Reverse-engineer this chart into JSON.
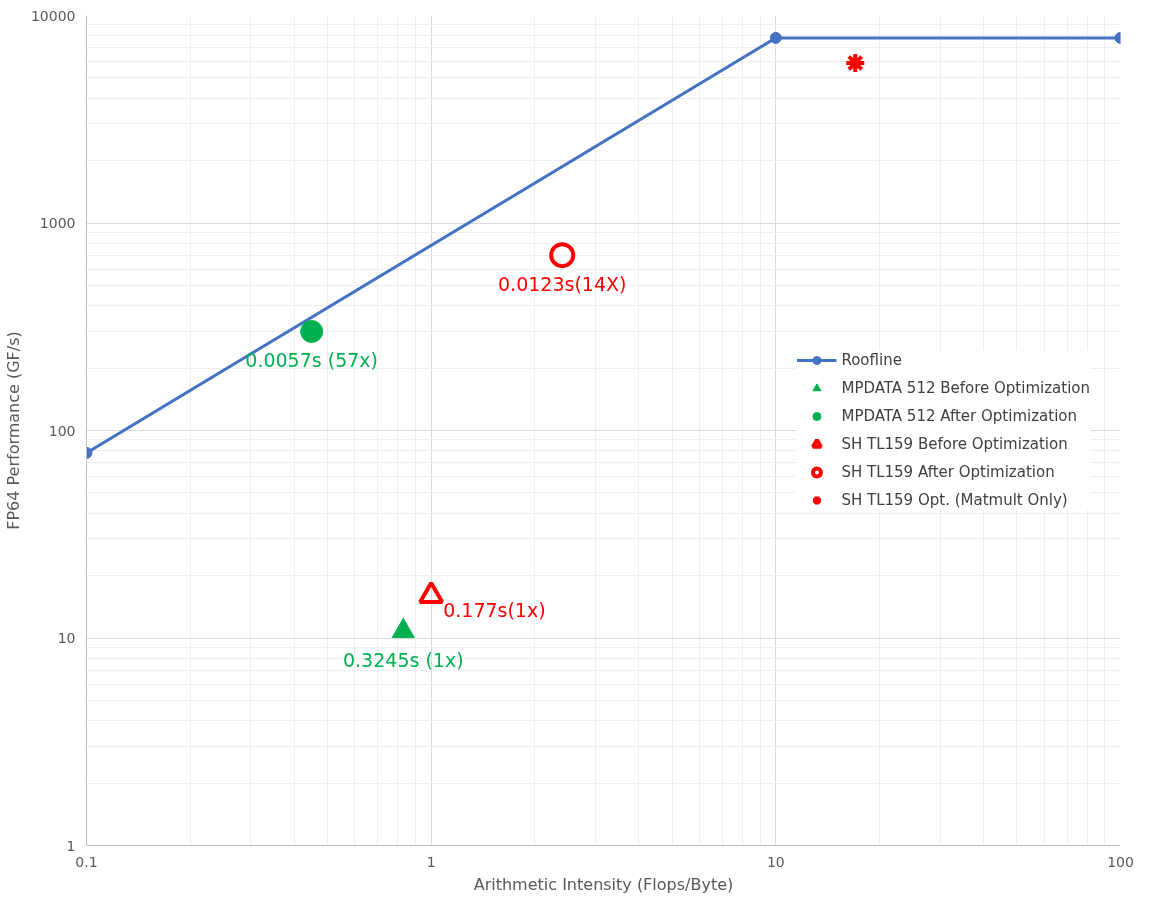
{
  "chart_data": {
    "type": "line",
    "xlabel": "Arithmetic Intensity (Flops/Byte)",
    "ylabel": "FP64 Performance (GF/s)",
    "log": "xy",
    "xlim": [
      0.1,
      100
    ],
    "ylim": [
      1,
      10000
    ],
    "xticks": [
      0.1,
      1,
      10,
      100
    ],
    "yticks": [
      1,
      10,
      100,
      1000,
      10000
    ],
    "grid": true,
    "legend": "right",
    "series": [
      {
        "name": "Roofline",
        "marker": "circle",
        "color": "#4472c4",
        "x": [
          0.1,
          10,
          100
        ],
        "values": [
          78,
          7800,
          7800
        ]
      },
      {
        "name": "MPDATA 512 Before Optimization",
        "type": "scatter",
        "marker": "triangle",
        "color": "#00b050",
        "x": [
          0.83
        ],
        "values": [
          10.8
        ]
      },
      {
        "name": "MPDATA 512 After Optimization",
        "type": "scatter",
        "marker": "circle",
        "color": "#00b050",
        "x": [
          0.45
        ],
        "values": [
          300
        ]
      },
      {
        "name": "SH TL159 Before Optimization",
        "type": "scatter",
        "marker": "triangle",
        "color": "#ff0000",
        "x": [
          1.0
        ],
        "values": [
          16
        ]
      },
      {
        "name": "SH TL159 After Optimization",
        "type": "scatter",
        "marker": "circle",
        "color": "#ff0000",
        "x": [
          2.4
        ],
        "values": [
          700
        ]
      },
      {
        "name": "SH TL159 Opt. (Matmult Only)",
        "type": "scatter",
        "marker": "cross",
        "color": "#ff0000",
        "x": [
          17
        ],
        "values": [
          5900
        ]
      }
    ],
    "annotations": [
      {
        "text": "0.0057s (57x)",
        "x": 0.45,
        "y": 300
      },
      {
        "text": "0.0123s(14X)",
        "x": 2.4,
        "y": 700
      },
      {
        "text": "0.177s(1x)",
        "x": 1.0,
        "y": 16
      },
      {
        "text": "0.3245s (1x)",
        "x": 0.83,
        "y": 10.8
      }
    ]
  }
}
